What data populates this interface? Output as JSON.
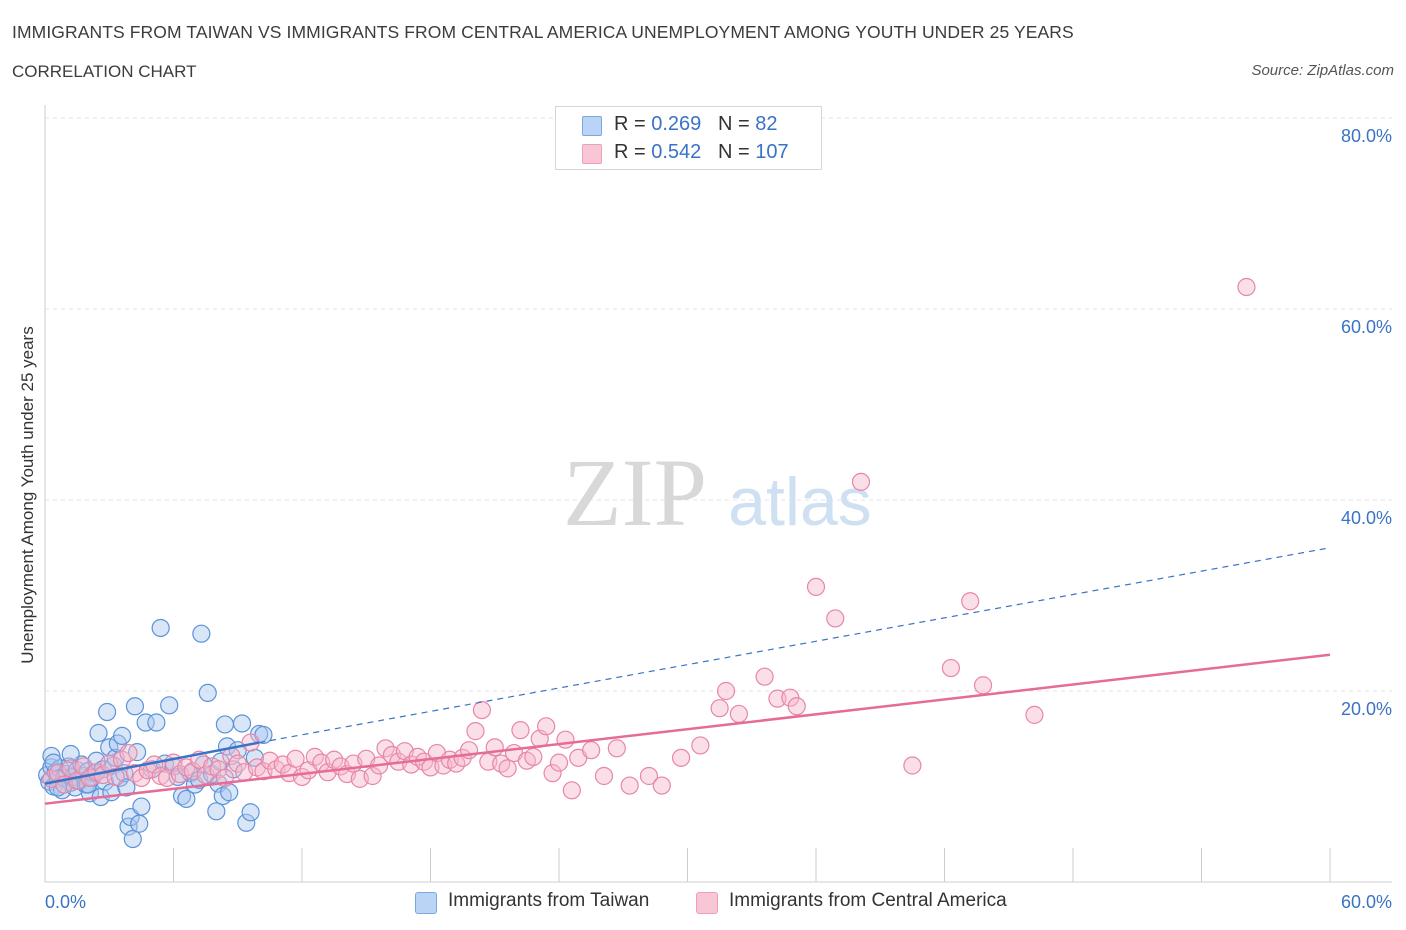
{
  "header": {
    "title": "IMMIGRANTS FROM TAIWAN VS IMMIGRANTS FROM CENTRAL AMERICA UNEMPLOYMENT AMONG YOUTH UNDER 25 YEARS",
    "subtitle": "CORRELATION CHART",
    "source": "Source: ZipAtlas.com"
  },
  "legend": {
    "rows": [
      {
        "r_label": "R = ",
        "r_value": "0.269",
        "n_label": "N = ",
        "n_value": "82"
      },
      {
        "r_label": "R = ",
        "r_value": "0.542",
        "n_label": "N = ",
        "n_value": "107"
      }
    ]
  },
  "watermark": {
    "zip": "ZIP",
    "atlas": "atlas"
  },
  "colors": {
    "taiwan_fill": "#a8c8f0",
    "taiwan_stroke": "#5b93d9",
    "taiwan_line": "#3a73c5",
    "ca_fill": "#f6b8cc",
    "ca_stroke": "#e886a7",
    "ca_line": "#e56b98",
    "tick_label": "#3a73c5"
  },
  "chart_data": {
    "type": "scatter",
    "title": "IMMIGRANTS FROM TAIWAN VS IMMIGRANTS FROM CENTRAL AMERICA UNEMPLOYMENT AMONG YOUTH UNDER 25 YEARS",
    "xlabel": "",
    "ylabel": "Unemployment Among Youth under 25 years",
    "xlim": [
      0,
      60
    ],
    "ylim": [
      0,
      80
    ],
    "x_tick_labels": [
      "0.0%",
      "60.0%"
    ],
    "y_ticks": [
      20,
      40,
      60,
      80
    ],
    "y_tick_labels": [
      "20.0%",
      "40.0%",
      "60.0%",
      "80.0%"
    ],
    "grid": true,
    "legend_position": "top-center",
    "series": [
      {
        "name": "Immigrants from Taiwan",
        "trend": {
          "x": [
            0,
            10
          ],
          "y": [
            10.3,
            14.6
          ],
          "extended_to": [
            60,
            35.0
          ]
        },
        "points": [
          [
            0.1,
            11.2
          ],
          [
            0.2,
            10.5
          ],
          [
            0.3,
            12.0
          ],
          [
            0.3,
            13.2
          ],
          [
            0.4,
            10.0
          ],
          [
            0.5,
            11.5
          ],
          [
            0.6,
            10.8
          ],
          [
            0.7,
            11.9
          ],
          [
            0.8,
            9.6
          ],
          [
            0.9,
            10.9
          ],
          [
            1.0,
            11.3
          ],
          [
            1.1,
            12.1
          ],
          [
            1.2,
            10.4
          ],
          [
            1.3,
            11.0
          ],
          [
            1.4,
            9.9
          ],
          [
            1.5,
            11.7
          ],
          [
            1.6,
            10.6
          ],
          [
            1.7,
            12.3
          ],
          [
            1.8,
            11.1
          ],
          [
            1.9,
            10.2
          ],
          [
            2.0,
            11.6
          ],
          [
            2.1,
            9.3
          ],
          [
            2.2,
            10.9
          ],
          [
            2.3,
            11.4
          ],
          [
            2.4,
            12.7
          ],
          [
            2.5,
            15.6
          ],
          [
            2.6,
            8.9
          ],
          [
            2.7,
            11.8
          ],
          [
            2.8,
            10.5
          ],
          [
            2.9,
            17.8
          ],
          [
            3.0,
            14.1
          ],
          [
            3.1,
            9.4
          ],
          [
            3.2,
            12.2
          ],
          [
            3.3,
            13.0
          ],
          [
            3.4,
            14.5
          ],
          [
            3.5,
            10.9
          ],
          [
            3.6,
            15.3
          ],
          [
            3.7,
            11.4
          ],
          [
            3.8,
            9.9
          ],
          [
            3.9,
            5.8
          ],
          [
            4.0,
            6.8
          ],
          [
            4.1,
            4.5
          ],
          [
            4.2,
            18.4
          ],
          [
            4.3,
            13.6
          ],
          [
            4.4,
            6.1
          ],
          [
            4.5,
            7.9
          ],
          [
            4.7,
            16.7
          ],
          [
            5.0,
            11.8
          ],
          [
            5.2,
            16.7
          ],
          [
            5.4,
            26.6
          ],
          [
            5.6,
            12.4
          ],
          [
            5.8,
            18.5
          ],
          [
            6.0,
            12.1
          ],
          [
            6.2,
            11.0
          ],
          [
            6.4,
            9.0
          ],
          [
            6.6,
            8.7
          ],
          [
            6.8,
            11.4
          ],
          [
            7.0,
            10.2
          ],
          [
            7.2,
            10.7
          ],
          [
            7.4,
            12.3
          ],
          [
            7.6,
            19.8
          ],
          [
            7.8,
            11.3
          ],
          [
            8.0,
            7.4
          ],
          [
            8.1,
            10.3
          ],
          [
            8.2,
            12.6
          ],
          [
            8.3,
            9.0
          ],
          [
            8.4,
            16.5
          ],
          [
            8.5,
            14.2
          ],
          [
            8.6,
            9.4
          ],
          [
            8.8,
            11.8
          ],
          [
            9.0,
            13.8
          ],
          [
            9.2,
            16.6
          ],
          [
            9.4,
            6.2
          ],
          [
            9.6,
            7.3
          ],
          [
            9.8,
            13.0
          ],
          [
            10.0,
            15.5
          ],
          [
            10.2,
            15.4
          ],
          [
            0.4,
            12.5
          ],
          [
            0.6,
            9.9
          ],
          [
            1.2,
            13.4
          ],
          [
            2.0,
            10.2
          ],
          [
            7.3,
            26.0
          ]
        ]
      },
      {
        "name": "Immigrants from Central America",
        "trend": {
          "x": [
            0,
            60
          ],
          "y": [
            8.2,
            23.8
          ]
        },
        "points": [
          [
            0.3,
            10.8
          ],
          [
            0.6,
            11.4
          ],
          [
            0.9,
            10.2
          ],
          [
            1.2,
            11.9
          ],
          [
            1.5,
            10.6
          ],
          [
            1.8,
            12.1
          ],
          [
            2.1,
            10.9
          ],
          [
            2.4,
            11.5
          ],
          [
            2.7,
            11.2
          ],
          [
            3.0,
            12.4
          ],
          [
            3.3,
            11.0
          ],
          [
            3.6,
            12.8
          ],
          [
            3.9,
            13.5
          ],
          [
            4.2,
            11.4
          ],
          [
            4.5,
            10.9
          ],
          [
            4.8,
            11.7
          ],
          [
            5.1,
            12.3
          ],
          [
            5.4,
            11.1
          ],
          [
            5.7,
            10.9
          ],
          [
            6.0,
            12.5
          ],
          [
            6.3,
            11.3
          ],
          [
            6.6,
            12.0
          ],
          [
            6.9,
            11.6
          ],
          [
            7.2,
            12.8
          ],
          [
            7.5,
            11.2
          ],
          [
            7.8,
            12.1
          ],
          [
            8.1,
            11.8
          ],
          [
            8.4,
            10.9
          ],
          [
            8.7,
            13.2
          ],
          [
            9.0,
            12.4
          ],
          [
            9.3,
            11.5
          ],
          [
            9.6,
            14.6
          ],
          [
            9.9,
            12.0
          ],
          [
            10.2,
            11.6
          ],
          [
            10.5,
            12.7
          ],
          [
            10.8,
            11.8
          ],
          [
            11.1,
            12.3
          ],
          [
            11.4,
            11.4
          ],
          [
            11.7,
            12.9
          ],
          [
            12.0,
            11.0
          ],
          [
            12.3,
            11.7
          ],
          [
            12.6,
            13.1
          ],
          [
            12.9,
            12.5
          ],
          [
            13.2,
            11.5
          ],
          [
            13.5,
            12.8
          ],
          [
            13.8,
            12.1
          ],
          [
            14.1,
            11.3
          ],
          [
            14.4,
            12.4
          ],
          [
            14.7,
            10.8
          ],
          [
            15.0,
            12.9
          ],
          [
            15.3,
            11.1
          ],
          [
            15.6,
            12.2
          ],
          [
            15.9,
            14.0
          ],
          [
            16.2,
            13.3
          ],
          [
            16.5,
            12.6
          ],
          [
            16.8,
            13.7
          ],
          [
            17.1,
            12.3
          ],
          [
            17.4,
            13.1
          ],
          [
            17.7,
            12.6
          ],
          [
            18.0,
            12.0
          ],
          [
            18.3,
            13.5
          ],
          [
            18.6,
            12.2
          ],
          [
            18.9,
            12.8
          ],
          [
            19.2,
            12.4
          ],
          [
            19.5,
            13.0
          ],
          [
            19.8,
            13.8
          ],
          [
            20.1,
            15.8
          ],
          [
            20.4,
            18.0
          ],
          [
            20.7,
            12.6
          ],
          [
            21.0,
            14.1
          ],
          [
            21.3,
            12.4
          ],
          [
            21.6,
            11.9
          ],
          [
            21.9,
            13.5
          ],
          [
            22.2,
            15.9
          ],
          [
            22.5,
            12.7
          ],
          [
            22.8,
            13.1
          ],
          [
            23.1,
            15.0
          ],
          [
            23.4,
            16.3
          ],
          [
            23.7,
            11.4
          ],
          [
            24.0,
            12.5
          ],
          [
            24.3,
            14.9
          ],
          [
            24.6,
            9.6
          ],
          [
            24.9,
            13.0
          ],
          [
            25.5,
            13.8
          ],
          [
            26.1,
            11.1
          ],
          [
            26.7,
            14.0
          ],
          [
            27.3,
            10.1
          ],
          [
            28.2,
            11.1
          ],
          [
            28.8,
            10.1
          ],
          [
            29.7,
            13.0
          ],
          [
            30.6,
            14.3
          ],
          [
            31.5,
            18.2
          ],
          [
            31.8,
            20.0
          ],
          [
            32.4,
            17.6
          ],
          [
            33.6,
            21.5
          ],
          [
            34.2,
            19.2
          ],
          [
            34.8,
            19.3
          ],
          [
            35.1,
            18.4
          ],
          [
            36.0,
            30.9
          ],
          [
            36.9,
            27.6
          ],
          [
            38.1,
            41.9
          ],
          [
            40.5,
            12.2
          ],
          [
            42.3,
            22.4
          ],
          [
            43.2,
            29.4
          ],
          [
            43.8,
            20.6
          ],
          [
            46.2,
            17.5
          ],
          [
            56.1,
            62.3
          ]
        ]
      }
    ]
  },
  "bottom_legend": {
    "taiwan_label": "Immigrants from Taiwan",
    "ca_label": "Immigrants from Central America"
  },
  "y_axis_title": "Unemployment Among Youth under 25 years"
}
